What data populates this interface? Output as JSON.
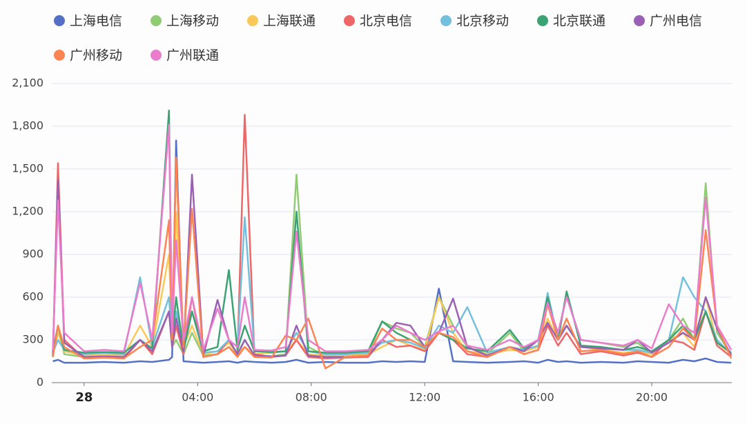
{
  "chart_data": {
    "type": "line",
    "x": [
      -1.1,
      -0.92,
      -0.7,
      0,
      0.7,
      1.4,
      1.97,
      2.4,
      2.99,
      3.1,
      3.24,
      3.5,
      3.8,
      4.2,
      4.7,
      5.1,
      5.4,
      5.66,
      6.0,
      6.6,
      7.1,
      7.48,
      7.9,
      8.5,
      9.2,
      10,
      10.5,
      11,
      11.5,
      12,
      12.5,
      13.0,
      13.5,
      14.2,
      15,
      15.5,
      16,
      16.33,
      16.7,
      17.0,
      17.5,
      18.2,
      19,
      19.5,
      20,
      20.6,
      21.1,
      21.5,
      21.9,
      22.3,
      22.8
    ],
    "xlim": [
      -1.14,
      22.82
    ],
    "xticks": [
      {
        "value": 0,
        "label": "28"
      },
      {
        "value": 4,
        "label": "04:00"
      },
      {
        "value": 8,
        "label": "08:00"
      },
      {
        "value": 12,
        "label": "12:00"
      },
      {
        "value": 16,
        "label": "16:00"
      },
      {
        "value": 20,
        "label": "20:00"
      }
    ],
    "ylim": [
      0,
      2100
    ],
    "yticks": [
      0,
      300,
      600,
      900,
      {
        "value": 1200,
        "label": "1,200"
      },
      {
        "value": 1500,
        "label": "1,500"
      },
      {
        "value": 1800,
        "label": "1,800"
      },
      {
        "value": 2100,
        "label": "2,100"
      }
    ],
    "grid": true,
    "series": [
      {
        "name": "上海电信",
        "color": "#5470c6",
        "values": [
          150,
          160,
          140,
          140,
          145,
          140,
          150,
          145,
          160,
          180,
          1700,
          150,
          145,
          140,
          145,
          150,
          140,
          150,
          145,
          140,
          145,
          160,
          140,
          145,
          140,
          140,
          150,
          145,
          150,
          145,
          660,
          150,
          145,
          140,
          145,
          150,
          140,
          160,
          145,
          150,
          140,
          145,
          140,
          150,
          145,
          140,
          160,
          150,
          170,
          145,
          140
        ]
      },
      {
        "name": "上海移动",
        "color": "#91cc75",
        "values": [
          190,
          400,
          200,
          180,
          185,
          180,
          300,
          220,
          500,
          250,
          300,
          200,
          350,
          190,
          200,
          250,
          190,
          300,
          190,
          185,
          200,
          1460,
          250,
          190,
          185,
          200,
          430,
          380,
          350,
          250,
          600,
          400,
          250,
          200,
          350,
          220,
          300,
          560,
          350,
          610,
          300,
          280,
          250,
          280,
          200,
          300,
          450,
          300,
          1400,
          350,
          200
        ]
      },
      {
        "name": "上海联通",
        "color": "#fac858",
        "values": [
          200,
          350,
          220,
          190,
          200,
          190,
          400,
          250,
          900,
          300,
          1200,
          250,
          400,
          200,
          220,
          280,
          200,
          250,
          200,
          210,
          220,
          300,
          200,
          190,
          190,
          200,
          250,
          300,
          260,
          230,
          600,
          350,
          220,
          200,
          230,
          220,
          250,
          450,
          300,
          400,
          250,
          230,
          210,
          220,
          200,
          300,
          350,
          250,
          600,
          280,
          200
        ]
      },
      {
        "name": "北京电信",
        "color": "#ee6666",
        "values": [
          180,
          1540,
          300,
          170,
          175,
          170,
          300,
          200,
          500,
          250,
          400,
          200,
          600,
          180,
          200,
          300,
          200,
          1880,
          200,
          180,
          190,
          300,
          180,
          170,
          175,
          180,
          300,
          250,
          260,
          220,
          350,
          300,
          200,
          180,
          250,
          200,
          230,
          400,
          260,
          350,
          200,
          220,
          190,
          210,
          180,
          300,
          280,
          230,
          500,
          260,
          180
        ]
      },
      {
        "name": "北京移动",
        "color": "#73c0de",
        "values": [
          210,
          300,
          230,
          200,
          210,
          200,
          740,
          250,
          600,
          280,
          500,
          220,
          500,
          210,
          220,
          300,
          250,
          1160,
          230,
          210,
          220,
          350,
          220,
          200,
          200,
          210,
          280,
          300,
          280,
          240,
          400,
          350,
          530,
          210,
          250,
          230,
          260,
          630,
          300,
          400,
          250,
          240,
          230,
          230,
          210,
          300,
          740,
          600,
          500,
          300,
          200
        ]
      },
      {
        "name": "北京联通",
        "color": "#3ba272",
        "values": [
          220,
          400,
          230,
          210,
          215,
          210,
          300,
          240,
          1910,
          300,
          600,
          230,
          500,
          220,
          250,
          790,
          230,
          400,
          220,
          215,
          220,
          1200,
          220,
          210,
          210,
          220,
          430,
          350,
          300,
          250,
          350,
          300,
          240,
          220,
          370,
          240,
          300,
          600,
          300,
          640,
          260,
          250,
          230,
          250,
          220,
          300,
          400,
          300,
          500,
          280,
          210
        ]
      },
      {
        "name": "广州电信",
        "color": "#9a60b4",
        "values": [
          190,
          1420,
          280,
          180,
          185,
          180,
          300,
          220,
          500,
          250,
          450,
          220,
          1460,
          190,
          580,
          300,
          200,
          300,
          190,
          185,
          190,
          400,
          190,
          180,
          180,
          190,
          300,
          420,
          400,
          250,
          350,
          590,
          250,
          190,
          250,
          220,
          300,
          420,
          300,
          400,
          250,
          240,
          230,
          300,
          210,
          280,
          350,
          300,
          600,
          380,
          190
        ]
      },
      {
        "name": "广州移动",
        "color": "#fc8452",
        "values": [
          180,
          400,
          250,
          170,
          175,
          170,
          250,
          300,
          1140,
          300,
          1580,
          250,
          1220,
          180,
          200,
          250,
          180,
          250,
          180,
          175,
          330,
          300,
          450,
          100,
          180,
          190,
          380,
          300,
          300,
          250,
          350,
          320,
          220,
          180,
          250,
          200,
          230,
          550,
          300,
          450,
          220,
          230,
          200,
          220,
          180,
          250,
          380,
          300,
          1070,
          400,
          170
        ]
      },
      {
        "name": "广州联通",
        "color": "#ea7ccc",
        "values": [
          230,
          1280,
          350,
          220,
          230,
          220,
          700,
          300,
          1810,
          350,
          1000,
          300,
          600,
          230,
          520,
          300,
          250,
          600,
          230,
          225,
          250,
          1060,
          300,
          220,
          220,
          230,
          300,
          400,
          350,
          300,
          360,
          400,
          260,
          230,
          300,
          250,
          300,
          560,
          350,
          600,
          300,
          280,
          260,
          300,
          240,
          550,
          400,
          350,
          1300,
          400,
          230
        ]
      }
    ]
  }
}
